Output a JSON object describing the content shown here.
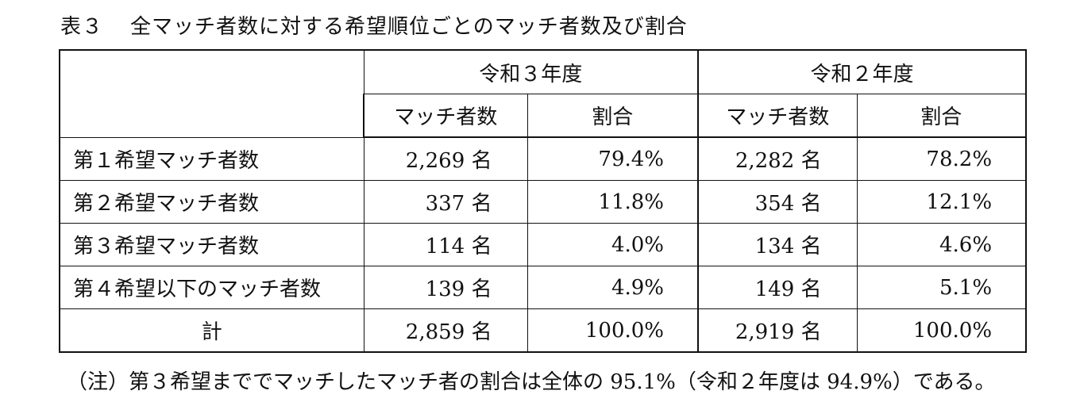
{
  "title": {
    "label": "表３",
    "text": "全マッチ者数に対する希望順位ごとのマッチ者数及び割合"
  },
  "table": {
    "year_headers": [
      "令和３年度",
      "令和２年度"
    ],
    "sub_headers": [
      "マッチ者数",
      "割合",
      "マッチ者数",
      "割合"
    ],
    "rows": [
      {
        "label": "第１希望マッチ者数",
        "r3_count": "2,269 名",
        "r3_ratio": "79.4%",
        "r2_count": "2,282 名",
        "r2_ratio": "78.2%"
      },
      {
        "label": "第２希望マッチ者数",
        "r3_count": "337 名",
        "r3_ratio": "11.8%",
        "r2_count": "354 名",
        "r2_ratio": "12.1%"
      },
      {
        "label": "第３希望マッチ者数",
        "r3_count": "114 名",
        "r3_ratio": "4.0%",
        "r2_count": "134 名",
        "r2_ratio": "4.6%"
      },
      {
        "label": "第４希望以下のマッチ者数",
        "r3_count": "139 名",
        "r3_ratio": "4.9%",
        "r2_count": "149 名",
        "r2_ratio": "5.1%"
      },
      {
        "label": "計",
        "r3_count": "2,859 名",
        "r3_ratio": "100.0%",
        "r2_count": "2,919 名",
        "r2_ratio": "100.0%"
      }
    ]
  },
  "note": "（注）第３希望まででマッチしたマッチ者の割合は全体の 95.1%（令和２年度は 94.9%）である。"
}
